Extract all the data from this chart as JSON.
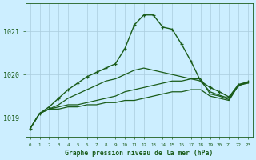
{
  "title": "Graphe pression niveau de la mer (hPa)",
  "background_color": "#cceeff",
  "grid_color": "#aaccdd",
  "line_color": "#1a5c1a",
  "yticks": [
    1019,
    1020,
    1021
  ],
  "ylim": [
    1018.55,
    1021.65
  ],
  "xlim": [
    -0.5,
    23.5
  ],
  "series": [
    {
      "y": [
        1018.75,
        1019.1,
        1019.2,
        1019.2,
        1019.25,
        1019.25,
        1019.3,
        1019.3,
        1019.35,
        1019.35,
        1019.4,
        1019.4,
        1019.45,
        1019.5,
        1019.55,
        1019.6,
        1019.6,
        1019.65,
        1019.65,
        1019.5,
        1019.45,
        1019.4,
        1019.75,
        1019.8
      ],
      "marker": null,
      "linewidth": 0.9,
      "zorder": 2
    },
    {
      "y": [
        1018.75,
        1019.1,
        1019.2,
        1019.25,
        1019.3,
        1019.3,
        1019.35,
        1019.4,
        1019.45,
        1019.5,
        1019.6,
        1019.65,
        1019.7,
        1019.75,
        1019.8,
        1019.85,
        1019.85,
        1019.9,
        1019.9,
        1019.55,
        1019.5,
        1019.42,
        1019.75,
        1019.82
      ],
      "marker": null,
      "linewidth": 0.9,
      "zorder": 2
    },
    {
      "y": [
        1018.75,
        1019.1,
        1019.2,
        1019.3,
        1019.45,
        1019.55,
        1019.65,
        1019.75,
        1019.85,
        1019.9,
        1020.0,
        1020.1,
        1020.15,
        1020.1,
        1020.05,
        1020.0,
        1019.95,
        1019.9,
        1019.85,
        1019.6,
        1019.52,
        1019.45,
        1019.75,
        1019.82
      ],
      "marker": null,
      "linewidth": 0.9,
      "zorder": 2
    },
    {
      "y": [
        1018.75,
        1019.1,
        1019.25,
        1019.45,
        1019.65,
        1019.8,
        1019.95,
        1020.05,
        1020.15,
        1020.25,
        1020.6,
        1021.15,
        1021.38,
        1021.38,
        1021.1,
        1021.05,
        1020.7,
        1020.3,
        1019.85,
        1019.7,
        1019.6,
        1019.48,
        1019.77,
        1019.83
      ],
      "marker": "+",
      "linewidth": 1.0,
      "zorder": 3
    }
  ]
}
